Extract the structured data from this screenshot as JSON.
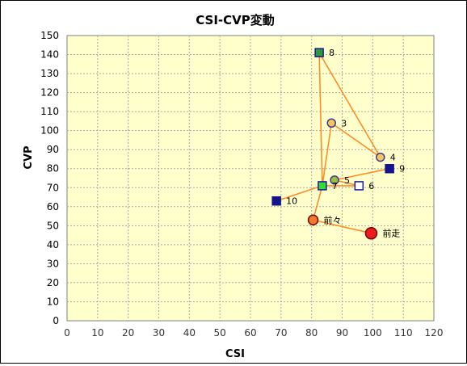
{
  "chart_data": {
    "type": "scatter",
    "title": "CSI-CVP変動",
    "xlabel": "CSI",
    "ylabel": "CVP",
    "xlim": [
      0,
      120
    ],
    "ylim": [
      0,
      150
    ],
    "xticks": [
      0,
      10,
      20,
      30,
      40,
      50,
      60,
      70,
      80,
      90,
      100,
      110,
      120
    ],
    "yticks": [
      0,
      10,
      20,
      30,
      40,
      50,
      60,
      70,
      80,
      90,
      100,
      110,
      120,
      130,
      140,
      150
    ],
    "grid": true,
    "plot_background": "#FFFFCC",
    "grid_color": "#A8A8A8",
    "line_color": "#FF8C28",
    "points": [
      {
        "label": "前走",
        "x": 99.5,
        "y": 46,
        "marker": "circle-large",
        "fill": "#EE1C1C",
        "stroke": "#7A0000"
      },
      {
        "label": "前々",
        "x": 80.5,
        "y": 53,
        "marker": "circle-medium",
        "fill": "#F07A2A",
        "stroke": "#7A0000"
      },
      {
        "label": "3",
        "x": 86.5,
        "y": 104,
        "marker": "circle",
        "fill": "#F6C75A",
        "stroke": "#3A3A9A"
      },
      {
        "label": "4",
        "x": 102.5,
        "y": 86,
        "marker": "circle",
        "fill": "#F6C75A",
        "stroke": "#3A3A9A"
      },
      {
        "label": "5",
        "x": 87.5,
        "y": 74,
        "marker": "circle",
        "fill": "#9AC23A",
        "stroke": "#3A3A9A"
      },
      {
        "label": "6",
        "x": 95.5,
        "y": 71,
        "marker": "square",
        "fill": "#FFFFFF",
        "stroke": "#1A1A9A"
      },
      {
        "label": "7",
        "x": 83.5,
        "y": 71,
        "marker": "square",
        "fill": "#33DD33",
        "stroke": "#1A1A9A"
      },
      {
        "label": "8",
        "x": 82.5,
        "y": 141,
        "marker": "square",
        "fill": "#2A9A3A",
        "stroke": "#1A1A9A"
      },
      {
        "label": "9",
        "x": 105.5,
        "y": 80,
        "marker": "square",
        "fill": "#14148C",
        "stroke": "#14148C"
      },
      {
        "label": "10",
        "x": 68.5,
        "y": 63,
        "marker": "square",
        "fill": "#14148C",
        "stroke": "#14148C"
      }
    ],
    "path_order": [
      "前走",
      "前々",
      "7",
      "8",
      "4",
      "3",
      "7",
      "10",
      "7",
      "6",
      "5",
      "9"
    ]
  }
}
